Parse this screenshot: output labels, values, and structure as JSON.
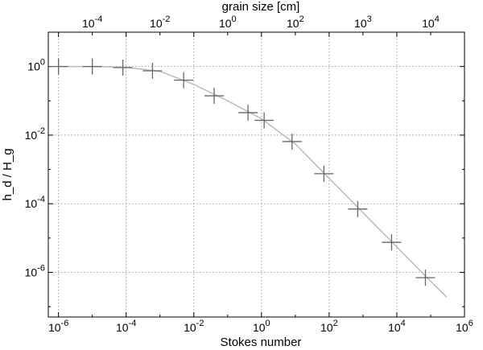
{
  "chart_data": {
    "type": "scatter",
    "xlabel": "Stokes number",
    "ylabel": "h_d / H_g",
    "top_xlabel": "grain size [cm]",
    "xscale": "log",
    "yscale": "log",
    "xlim": [
      5e-07,
      1000000.0
    ],
    "ylim": [
      5e-08,
      10
    ],
    "grid": true,
    "x_ticks": [
      {
        "value": 1e-06,
        "base": "10",
        "exp": "-6"
      },
      {
        "value": 0.0001,
        "base": "10",
        "exp": "-4"
      },
      {
        "value": 0.01,
        "base": "10",
        "exp": "-2"
      },
      {
        "value": 1,
        "base": "10",
        "exp": "0"
      },
      {
        "value": 100.0,
        "base": "10",
        "exp": "2"
      },
      {
        "value": 10000.0,
        "base": "10",
        "exp": "4"
      },
      {
        "value": 1000000.0,
        "base": "10",
        "exp": "6"
      }
    ],
    "top_x_ticks": [
      {
        "position": 1e-05,
        "base": "10",
        "exp": "-4"
      },
      {
        "position": 0.001,
        "base": "10",
        "exp": "-2"
      },
      {
        "position": 0.1,
        "base": "10",
        "exp": "0"
      },
      {
        "position": 10.0,
        "base": "10",
        "exp": "2"
      },
      {
        "position": 1000.0,
        "base": "10",
        "exp": "3"
      },
      {
        "position": 100000.0,
        "base": "10",
        "exp": "4"
      }
    ],
    "y_ticks": [
      {
        "value": 1e-06,
        "base": "10",
        "exp": "-6"
      },
      {
        "value": 0.0001,
        "base": "10",
        "exp": "-4"
      },
      {
        "value": 0.01,
        "base": "10",
        "exp": "-2"
      },
      {
        "value": 1,
        "base": "10",
        "exp": "0"
      }
    ],
    "series": [
      {
        "kind": "markers",
        "marker": "plus",
        "color": "#666666",
        "points": [
          {
            "x": 1e-06,
            "y": 1.0
          },
          {
            "x": 1e-05,
            "y": 1.0
          },
          {
            "x": 8e-05,
            "y": 0.93
          },
          {
            "x": 0.0006,
            "y": 0.75
          },
          {
            "x": 0.005,
            "y": 0.4
          },
          {
            "x": 0.04,
            "y": 0.14
          },
          {
            "x": 0.4,
            "y": 0.045
          },
          {
            "x": 1.2,
            "y": 0.027
          },
          {
            "x": 8,
            "y": 0.0065
          },
          {
            "x": 70,
            "y": 0.00075
          },
          {
            "x": 700,
            "y": 7e-05
          },
          {
            "x": 7000,
            "y": 7.5e-06
          },
          {
            "x": 70000,
            "y": 7e-07
          }
        ]
      },
      {
        "kind": "line",
        "color": "#bbbbbb",
        "points": [
          {
            "x": 1e-06,
            "y": 1.0
          },
          {
            "x": 1e-05,
            "y": 0.99
          },
          {
            "x": 0.0001,
            "y": 0.95
          },
          {
            "x": 0.001,
            "y": 0.72
          },
          {
            "x": 0.01,
            "y": 0.3
          },
          {
            "x": 0.1,
            "y": 0.1
          },
          {
            "x": 1,
            "y": 0.03
          },
          {
            "x": 10,
            "y": 0.0055
          },
          {
            "x": 100,
            "y": 0.00055
          },
          {
            "x": 1000,
            "y": 5.5e-05
          },
          {
            "x": 10000,
            "y": 5.5e-06
          },
          {
            "x": 100000,
            "y": 5.5e-07
          },
          {
            "x": 300000,
            "y": 1.9e-07
          }
        ]
      }
    ]
  }
}
